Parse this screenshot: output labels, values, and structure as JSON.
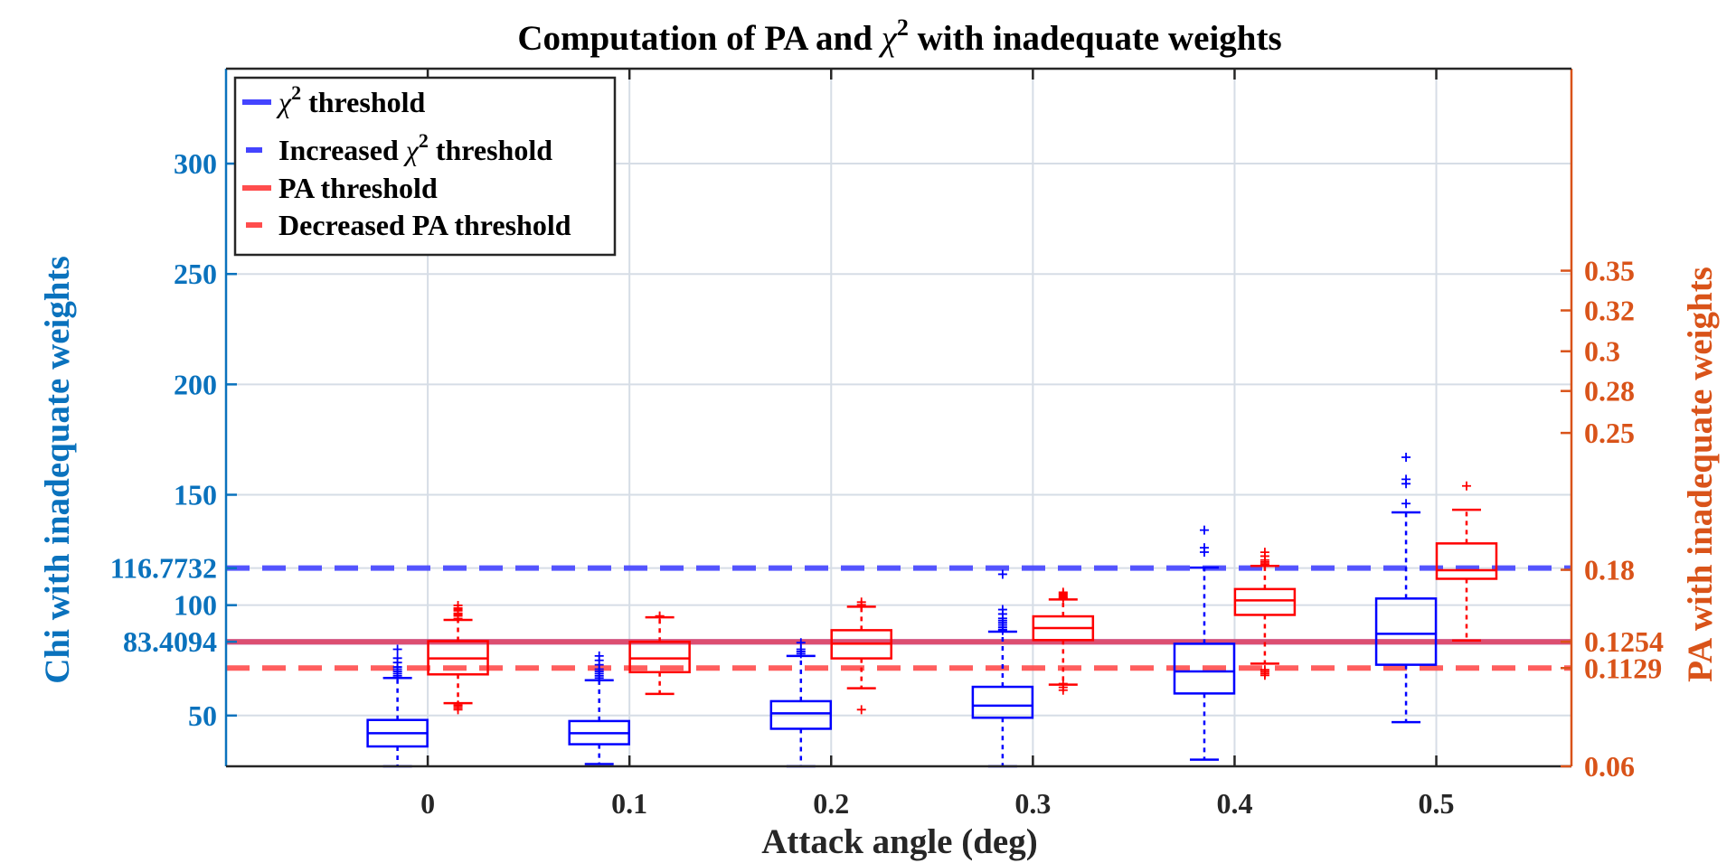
{
  "chart_data": {
    "type": "box",
    "title_prefix": "Computation of PA and ",
    "title_symbol": "χ",
    "title_sup": "2",
    "title_suffix": " with inadequate weights",
    "xlabel": "Attack angle (deg)",
    "ylabel_left": "Chi with inadequate weights",
    "ylabel_right": "PA with inadequate weights",
    "categories": [
      "0",
      "0.1",
      "0.2",
      "0.3",
      "0.4",
      "0.5"
    ],
    "x_values": [
      0,
      0.1,
      0.2,
      0.3,
      0.4,
      0.5
    ],
    "xlim": [
      -0.1,
      0.567
    ],
    "ylim_left": [
      27,
      343
    ],
    "left_ticks": [
      50,
      100,
      150,
      200,
      250,
      300
    ],
    "left_tick_labels": [
      "50",
      "100",
      "150",
      "200",
      "250",
      "300"
    ],
    "left_extra_ticks": [
      83.4094,
      116.7732
    ],
    "left_extra_labels": [
      "83.4094",
      "116.7732"
    ],
    "right_axis_scale": "mapped",
    "right_ticks": [
      0.06,
      0.1129,
      0.1254,
      0.18,
      0.25,
      0.28,
      0.3,
      0.32,
      0.35
    ],
    "right_tick_labels": [
      "0.06",
      "0.1129",
      "0.1254",
      "0.18",
      "0.25",
      "0.28",
      "0.3",
      "0.32",
      "0.35"
    ],
    "right_tick_left_equiv": [
      27,
      71.5,
      83.4,
      116.0,
      178.0,
      197.0,
      215.0,
      233.5,
      251.5
    ],
    "grid": true,
    "legend_position": "top-left",
    "legend": [
      {
        "prefix": "",
        "symbol": "χ",
        "sup": "2",
        "suffix": " threshold",
        "color": "#4444ff",
        "dash": "solid"
      },
      {
        "prefix": "Increased ",
        "symbol": "χ",
        "sup": "2",
        "suffix": " threshold",
        "color": "#4444ff",
        "dash": "dashed"
      },
      {
        "prefix": "PA threshold",
        "symbol": "",
        "sup": "",
        "suffix": "",
        "color": "#ff4d4d",
        "dash": "solid"
      },
      {
        "prefix": "Decreased PA threshold",
        "symbol": "",
        "sup": "",
        "suffix": "",
        "color": "#ff4d4d",
        "dash": "dashed"
      }
    ],
    "thresholds": {
      "chi": 83.4094,
      "chi_increased": 116.7732,
      "pa": 0.1254,
      "pa_decreased": 0.1129
    },
    "series": [
      {
        "name": "Chi",
        "axis": "left",
        "offset": -0.015,
        "color": "#0000ff",
        "boxes": [
          {
            "whisker_low": 27,
            "q1": 36,
            "median": 42,
            "q3": 48,
            "whisker_high": 67,
            "outliers": [
              68,
              69,
              70,
              71,
              72,
              74,
              76,
              80
            ]
          },
          {
            "whisker_low": 28,
            "q1": 37,
            "median": 42,
            "q3": 47.5,
            "whisker_high": 66,
            "outliers": [
              67,
              68,
              69,
              70,
              71,
              73,
              75,
              77
            ]
          },
          {
            "whisker_low": 27,
            "q1": 44,
            "median": 51,
            "q3": 56.5,
            "whisker_high": 77,
            "outliers": [
              78,
              79,
              80,
              83
            ]
          },
          {
            "whisker_low": 27,
            "q1": 49,
            "median": 54.5,
            "q3": 63,
            "whisker_high": 88,
            "outliers": [
              88.5,
              89,
              90,
              91,
              92,
              93,
              94,
              96,
              98,
              114
            ]
          },
          {
            "whisker_low": 30,
            "q1": 60,
            "median": 70,
            "q3": 82.5,
            "whisker_high": 117,
            "outliers": [
              124,
              126,
              134
            ]
          },
          {
            "whisker_low": 47,
            "q1": 73,
            "median": 87,
            "q3": 103,
            "whisker_high": 142,
            "outliers": [
              146,
              155,
              157,
              167
            ]
          }
        ]
      },
      {
        "name": "PA",
        "axis": "right",
        "offset": 0.015,
        "color": "#ff0000",
        "boxes": [
          {
            "whisker_low": 0.094,
            "q1": 0.1095,
            "median": 0.1175,
            "q3": 0.1259,
            "whisker_high": 0.142,
            "outliers": [
              0.0905,
              0.0915,
              0.093,
              0.0925,
              0.143,
              0.145,
              0.146,
              0.147,
              0.149,
              0.15,
              0.151,
              0.153
            ]
          },
          {
            "whisker_low": 0.099,
            "q1": 0.1107,
            "median": 0.1175,
            "q3": 0.1254,
            "whisker_high": 0.144,
            "outliers": [
              0.1445,
              0.145
            ]
          },
          {
            "whisker_low": 0.102,
            "q1": 0.1175,
            "median": 0.1245,
            "q3": 0.1342,
            "whisker_high": 0.152,
            "outliers": [
              0.0905,
              0.1535,
              0.1555
            ]
          },
          {
            "whisker_low": 0.104,
            "q1": 0.1267,
            "median": 0.1358,
            "q3": 0.1447,
            "whisker_high": 0.1575,
            "outliers": [
              0.101,
              0.1025,
              0.1045,
              0.1585,
              0.159,
              0.16,
              0.161,
              0.162,
              0.163
            ]
          },
          {
            "whisker_low": 0.115,
            "q1": 0.1458,
            "median": 0.1568,
            "q3": 0.1654,
            "whisker_high": 0.182,
            "outliers": [
              0.109,
              0.11,
              0.111,
              0.112,
              0.183,
              0.184,
              0.185,
              0.187,
              0.189
            ]
          },
          {
            "whisker_low": 0.1264,
            "q1": 0.1732,
            "median": 0.1797,
            "q3": 0.1935,
            "whisker_high": 0.2107,
            "outliers": [
              0.2229
            ]
          }
        ]
      }
    ]
  }
}
